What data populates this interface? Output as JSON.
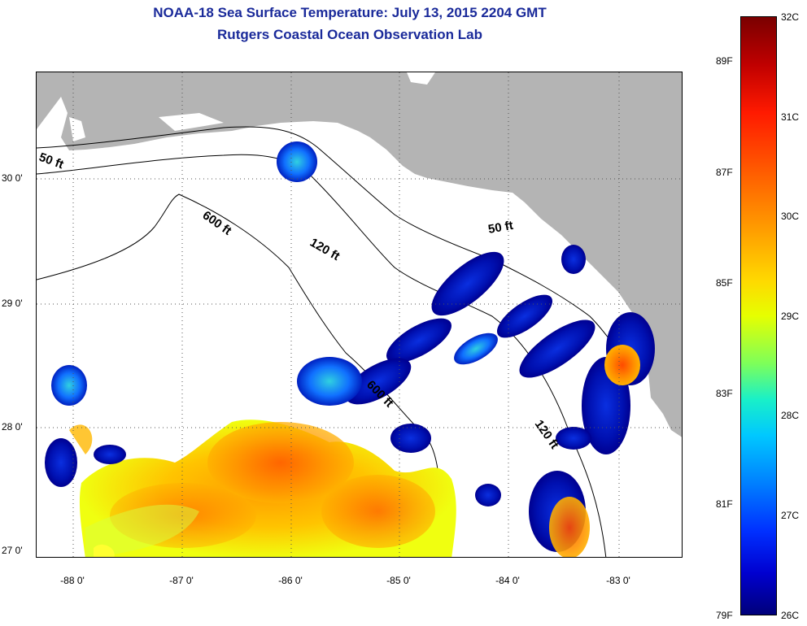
{
  "header": {
    "title": "NOAA-18 Sea Surface Temperature:  July 13, 2015 2204 GMT",
    "subtitle": "Rutgers Coastal Ocean Observation Lab"
  },
  "map": {
    "latitude_labels": [
      "30 0'",
      "29 0'",
      "28 0'",
      "27 0'"
    ],
    "longitude_labels": [
      "-88 0'",
      "-87 0'",
      "-86 0'",
      "-85 0'",
      "-84 0'",
      "-83 0'"
    ],
    "land_color": "#b4b4b4",
    "no_data_color": "#ffffff",
    "contour_labels": [
      "50 ft",
      "600 ft",
      "120 ft",
      "50 ft",
      "600 ft",
      "120 ft"
    ]
  },
  "colorbar": {
    "celsius_labels": [
      "32C",
      "31C",
      "30C",
      "29C",
      "28C",
      "27C",
      "26C"
    ],
    "fahrenheit_labels": [
      "89F",
      "87F",
      "85F",
      "83F",
      "81F",
      "79F"
    ]
  }
}
